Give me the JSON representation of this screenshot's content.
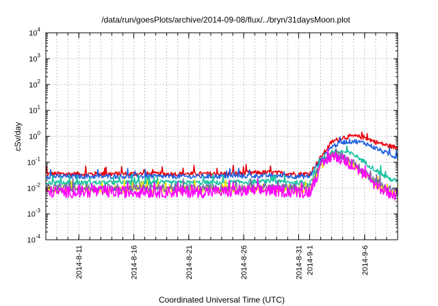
{
  "chart_data": {
    "type": "line",
    "title": "/data/run/goesPlots/archive/2014-09-08/flux/../bryn/31daysMoon.plot",
    "xlabel": "Coordinated Universal Time (UTC)",
    "ylabel": "cSv/day",
    "yscale": "log",
    "ylim": [
      0.0001,
      10000
    ],
    "xlim": [
      "2014-08-08",
      "2014-09-09"
    ],
    "grid": true,
    "y_ticks": [
      {
        "base": "10",
        "exp": "-4"
      },
      {
        "base": "10",
        "exp": "-3"
      },
      {
        "base": "10",
        "exp": "-2"
      },
      {
        "base": "10",
        "exp": "-1"
      },
      {
        "base": "10",
        "exp": "0"
      },
      {
        "base": "10",
        "exp": "1"
      },
      {
        "base": "10",
        "exp": "2"
      },
      {
        "base": "10",
        "exp": "3"
      },
      {
        "base": "10",
        "exp": "4"
      }
    ],
    "x_ticks": [
      {
        "label": "2014-8-11",
        "date": "2014-08-11"
      },
      {
        "label": "2014-8-16",
        "date": "2014-08-16"
      },
      {
        "label": "2014-8-21",
        "date": "2014-08-21"
      },
      {
        "label": "2014-8-26",
        "date": "2014-08-26"
      },
      {
        "label": "2014-8-31",
        "date": "2014-08-31"
      },
      {
        "label": "2014-9-1",
        "date": "2014-09-01"
      },
      {
        "label": "2014-9-6",
        "date": "2014-09-06"
      }
    ],
    "series_x": [
      "2014-08-08",
      "2014-08-12",
      "2014-08-16",
      "2014-08-20",
      "2014-08-24",
      "2014-08-28",
      "2014-08-31",
      "2014-09-01",
      "2014-09-02",
      "2014-09-03",
      "2014-09-04",
      "2014-09-05",
      "2014-09-06",
      "2014-09-07",
      "2014-09-08",
      "2014-09-09"
    ],
    "series": [
      {
        "color": "#e8000b",
        "values": [
          0.035,
          0.035,
          0.035,
          0.035,
          0.035,
          0.04,
          0.035,
          0.035,
          0.15,
          0.6,
          0.9,
          1.0,
          0.9,
          0.6,
          0.45,
          0.35
        ]
      },
      {
        "color": "#1f5fe0",
        "values": [
          0.028,
          0.028,
          0.028,
          0.028,
          0.028,
          0.03,
          0.028,
          0.028,
          0.12,
          0.4,
          0.6,
          0.65,
          0.55,
          0.35,
          0.22,
          0.15
        ]
      },
      {
        "color": "#17c3a0",
        "values": [
          0.016,
          0.016,
          0.016,
          0.016,
          0.016,
          0.018,
          0.016,
          0.016,
          0.09,
          0.25,
          0.25,
          0.2,
          0.1,
          0.05,
          0.025,
          0.018
        ]
      },
      {
        "color": "#ffe600",
        "values": [
          0.009,
          0.009,
          0.009,
          0.009,
          0.009,
          0.01,
          0.009,
          0.009,
          0.07,
          0.2,
          0.15,
          0.08,
          0.035,
          0.015,
          0.008,
          0.006
        ]
      },
      {
        "color": "#7a6aa8",
        "values": [
          0.01,
          0.01,
          0.01,
          0.01,
          0.01,
          0.011,
          0.01,
          0.01,
          0.08,
          0.2,
          0.17,
          0.09,
          0.04,
          0.018,
          0.01,
          0.008
        ]
      },
      {
        "color": "#ff00ff",
        "values": [
          0.007,
          0.007,
          0.007,
          0.007,
          0.007,
          0.008,
          0.007,
          0.007,
          0.065,
          0.18,
          0.13,
          0.07,
          0.03,
          0.012,
          0.007,
          0.005
        ]
      }
    ]
  }
}
